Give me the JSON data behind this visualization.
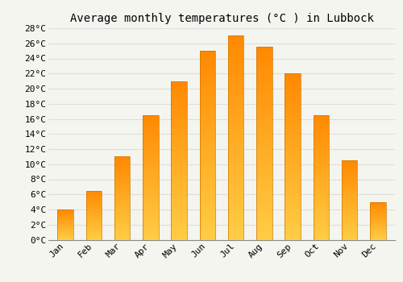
{
  "title": "Average monthly temperatures (°C ) in Lubbock",
  "months": [
    "Jan",
    "Feb",
    "Mar",
    "Apr",
    "May",
    "Jun",
    "Jul",
    "Aug",
    "Sep",
    "Oct",
    "Nov",
    "Dec"
  ],
  "values": [
    4,
    6.5,
    11,
    16.5,
    21,
    25,
    27,
    25.5,
    22,
    16.5,
    10.5,
    5
  ],
  "bar_color_bottom": "#FFCC44",
  "bar_color_top": "#FF8800",
  "bar_edge_color": "#CC7700",
  "ylim": [
    0,
    28
  ],
  "yticks": [
    0,
    2,
    4,
    6,
    8,
    10,
    12,
    14,
    16,
    18,
    20,
    22,
    24,
    26,
    28
  ],
  "ytick_labels": [
    "0°C",
    "2°C",
    "4°C",
    "6°C",
    "8°C",
    "10°C",
    "12°C",
    "14°C",
    "16°C",
    "18°C",
    "20°C",
    "22°C",
    "24°C",
    "26°C",
    "28°C"
  ],
  "background_color": "#f5f5f0",
  "grid_color": "#dddddd",
  "title_fontsize": 10,
  "tick_fontsize": 8,
  "font_family": "monospace",
  "bar_width": 0.55
}
